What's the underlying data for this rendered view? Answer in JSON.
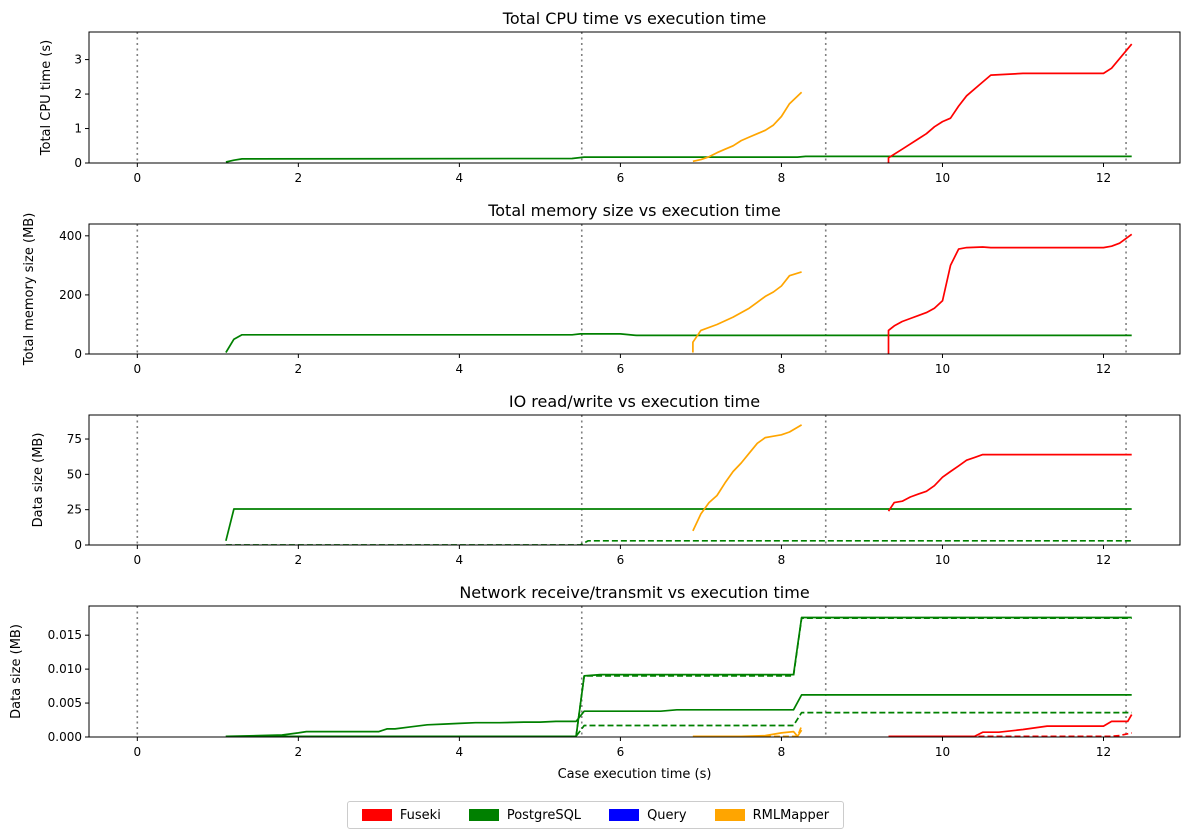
{
  "figure": {
    "xlabel": "Case execution time (s)",
    "legend": [
      {
        "label": "Fuseki",
        "color": "#ff0000"
      },
      {
        "label": "PostgreSQL",
        "color": "#008000"
      },
      {
        "label": "Query",
        "color": "#0000ff"
      },
      {
        "label": "RMLMapper",
        "color": "#ffa500"
      }
    ]
  },
  "chart_data": [
    {
      "type": "line",
      "title": "Total CPU time vs execution time",
      "xlabel": "",
      "ylabel": "Total CPU time (s)",
      "xlim": [
        -0.6,
        12.95
      ],
      "ylim": [
        0,
        3.8
      ],
      "xticks": [
        0,
        2,
        4,
        6,
        8,
        10,
        12
      ],
      "yticks": [
        0,
        1,
        2,
        3
      ],
      "ytick_labels": [
        "0",
        "1",
        "2",
        "3"
      ],
      "vlines": [
        0,
        5.52,
        8.55,
        12.28
      ],
      "series": [
        {
          "name": "PostgreSQL",
          "color": "#008000",
          "dash": false,
          "x": [
            1.1,
            1.2,
            1.3,
            5.4,
            5.55,
            8.2,
            8.3,
            12.35
          ],
          "y": [
            0.03,
            0.08,
            0.12,
            0.13,
            0.17,
            0.17,
            0.19,
            0.19
          ]
        },
        {
          "name": "RMLMapper",
          "color": "#ffa500",
          "dash": false,
          "x": [
            6.9,
            7.0,
            7.1,
            7.2,
            7.3,
            7.4,
            7.5,
            7.6,
            7.7,
            7.8,
            7.9,
            8.0,
            8.1,
            8.25
          ],
          "y": [
            0.05,
            0.1,
            0.18,
            0.3,
            0.4,
            0.5,
            0.65,
            0.75,
            0.85,
            0.95,
            1.1,
            1.35,
            1.72,
            2.05
          ]
        },
        {
          "name": "Fuseki",
          "color": "#ff0000",
          "dash": false,
          "x": [
            9.33,
            9.33,
            9.5,
            9.7,
            9.8,
            9.9,
            10.0,
            10.1,
            10.2,
            10.3,
            10.5,
            10.6,
            11.0,
            12.0,
            12.1,
            12.35
          ],
          "y": [
            0.0,
            0.15,
            0.4,
            0.7,
            0.85,
            1.05,
            1.2,
            1.3,
            1.65,
            1.95,
            2.35,
            2.55,
            2.6,
            2.6,
            2.75,
            3.45
          ]
        }
      ]
    },
    {
      "type": "line",
      "title": "Total memory size vs execution time",
      "xlabel": "",
      "ylabel": "Total memory size (MB)",
      "xlim": [
        -0.6,
        12.95
      ],
      "ylim": [
        0,
        440
      ],
      "xticks": [
        0,
        2,
        4,
        6,
        8,
        10,
        12
      ],
      "yticks": [
        0,
        200,
        400
      ],
      "ytick_labels": [
        "0",
        "200",
        "400"
      ],
      "vlines": [
        0,
        5.52,
        8.55,
        12.28
      ],
      "series": [
        {
          "name": "PostgreSQL",
          "color": "#008000",
          "dash": false,
          "x": [
            1.1,
            1.2,
            1.3,
            5.4,
            5.5,
            6.0,
            6.2,
            8.1,
            12.35
          ],
          "y": [
            5,
            50,
            65,
            65,
            68,
            68,
            63,
            63,
            63
          ]
        },
        {
          "name": "RMLMapper",
          "color": "#ffa500",
          "dash": false,
          "x": [
            6.9,
            6.9,
            6.95,
            7.0,
            7.2,
            7.4,
            7.6,
            7.7,
            7.8,
            7.9,
            8.0,
            8.1,
            8.25
          ],
          "y": [
            5,
            40,
            60,
            80,
            100,
            125,
            155,
            175,
            195,
            210,
            230,
            265,
            278
          ]
        },
        {
          "name": "Fuseki",
          "color": "#ff0000",
          "dash": false,
          "x": [
            9.33,
            9.33,
            9.4,
            9.5,
            9.6,
            9.7,
            9.8,
            9.9,
            10.0,
            10.1,
            10.2,
            10.3,
            10.5,
            10.6,
            12.0,
            12.1,
            12.2,
            12.35
          ],
          "y": [
            0,
            80,
            95,
            110,
            120,
            130,
            140,
            155,
            180,
            300,
            355,
            360,
            362,
            360,
            360,
            365,
            375,
            405
          ]
        }
      ]
    },
    {
      "type": "line",
      "title": "IO read/write vs execution time",
      "xlabel": "",
      "ylabel": "Data size (MB)",
      "xlim": [
        -0.6,
        12.95
      ],
      "ylim": [
        0,
        92
      ],
      "xticks": [
        0,
        2,
        4,
        6,
        8,
        10,
        12
      ],
      "yticks": [
        0,
        25,
        50,
        75
      ],
      "ytick_labels": [
        "0",
        "25",
        "50",
        "75"
      ],
      "vlines": [
        0,
        5.52,
        8.55,
        12.28
      ],
      "series": [
        {
          "name": "PostgreSQL",
          "color": "#008000",
          "dash": false,
          "x": [
            1.1,
            1.2,
            12.35
          ],
          "y": [
            3,
            25.5,
            25.5
          ]
        },
        {
          "name": "PostgreSQL",
          "color": "#008000",
          "dash": true,
          "x": [
            1.1,
            5.5,
            5.6,
            12.35
          ],
          "y": [
            0,
            0,
            3,
            3
          ]
        },
        {
          "name": "RMLMapper",
          "color": "#ffa500",
          "dash": false,
          "x": [
            6.9,
            7.0,
            7.1,
            7.2,
            7.3,
            7.4,
            7.5,
            7.6,
            7.7,
            7.8,
            7.9,
            8.0,
            8.1,
            8.25
          ],
          "y": [
            10,
            22,
            30,
            35,
            44,
            52,
            58,
            65,
            72,
            76,
            77,
            78,
            80,
            85
          ]
        },
        {
          "name": "Fuseki",
          "color": "#ff0000",
          "dash": false,
          "x": [
            9.33,
            9.4,
            9.5,
            9.6,
            9.7,
            9.8,
            9.9,
            10.0,
            10.1,
            10.2,
            10.3,
            10.4,
            10.5,
            12.35
          ],
          "y": [
            24,
            30,
            31,
            34,
            36,
            38,
            42,
            48,
            52,
            56,
            60,
            62,
            64,
            64
          ]
        }
      ]
    },
    {
      "type": "line",
      "title": "Network receive/transmit vs execution time",
      "xlabel": "Case execution time (s)",
      "ylabel": "Data size (MB)",
      "xlim": [
        -0.6,
        12.95
      ],
      "ylim": [
        0,
        0.0193
      ],
      "xticks": [
        0,
        2,
        4,
        6,
        8,
        10,
        12
      ],
      "yticks": [
        0,
        0.005,
        0.01,
        0.015
      ],
      "ytick_labels": [
        "0.000",
        "0.005",
        "0.010",
        "0.015"
      ],
      "vlines": [
        0,
        5.52,
        8.55,
        12.28
      ],
      "series": [
        {
          "name": "PostgreSQL",
          "color": "#008000",
          "dash": false,
          "x": [
            1.1,
            5.45,
            5.55,
            5.75,
            8.15,
            8.25,
            12.35
          ],
          "y": [
            0.0001,
            0.0001,
            0.009,
            0.0092,
            0.0092,
            0.0176,
            0.0176
          ]
        },
        {
          "name": "PostgreSQL",
          "color": "#008000",
          "dash": true,
          "x": [
            1.1,
            5.45,
            5.55,
            8.15,
            8.25,
            12.35
          ],
          "y": [
            0.0001,
            0.0001,
            0.009,
            0.009,
            0.0175,
            0.0175
          ]
        },
        {
          "name": "PostgreSQL",
          "color": "#008000",
          "dash": false,
          "x": [
            1.1,
            1.5,
            1.8,
            2.0,
            2.1,
            2.5,
            3.0,
            3.1,
            3.2,
            3.4,
            3.6,
            3.8,
            4.0,
            4.2,
            4.5,
            4.8,
            5.0,
            5.2,
            5.45,
            5.55,
            6.5,
            6.7,
            8.15,
            8.25,
            12.35
          ],
          "y": [
            0.0001,
            0.0002,
            0.0003,
            0.0006,
            0.0008,
            0.0008,
            0.0008,
            0.0012,
            0.0012,
            0.0015,
            0.0018,
            0.0019,
            0.002,
            0.0021,
            0.0021,
            0.0022,
            0.0022,
            0.0023,
            0.0023,
            0.0038,
            0.0038,
            0.004,
            0.004,
            0.0062,
            0.0062
          ]
        },
        {
          "name": "PostgreSQL",
          "color": "#008000",
          "dash": true,
          "x": [
            1.1,
            5.45,
            5.55,
            8.15,
            8.25,
            12.35
          ],
          "y": [
            0.0001,
            0.0001,
            0.0017,
            0.0017,
            0.0036,
            0.0036
          ]
        },
        {
          "name": "RMLMapper",
          "color": "#ffa500",
          "dash": false,
          "x": [
            6.9,
            7.5,
            7.8,
            8.0,
            8.15,
            8.2,
            8.25
          ],
          "y": [
            0.0001,
            0.0001,
            0.0002,
            0.0006,
            0.0008,
            0.0001,
            0.001
          ]
        },
        {
          "name": "RMLMapper",
          "color": "#ffa500",
          "dash": true,
          "x": [
            6.9,
            8.1,
            8.2,
            8.25
          ],
          "y": [
            0.0001,
            0.0001,
            0.0001,
            0.0016
          ]
        },
        {
          "name": "Fuseki",
          "color": "#ff0000",
          "dash": false,
          "x": [
            9.33,
            10.4,
            10.5,
            10.7,
            11.0,
            11.3,
            12.0,
            12.1,
            12.3,
            12.35
          ],
          "y": [
            0.0001,
            0.0001,
            0.0007,
            0.0007,
            0.0011,
            0.0016,
            0.0016,
            0.0023,
            0.0023,
            0.0033
          ]
        },
        {
          "name": "Fuseki",
          "color": "#ff0000",
          "dash": true,
          "x": [
            9.33,
            12.1,
            12.2,
            12.35
          ],
          "y": [
            0.0001,
            0.0001,
            0.0002,
            0.0006
          ]
        }
      ]
    }
  ]
}
